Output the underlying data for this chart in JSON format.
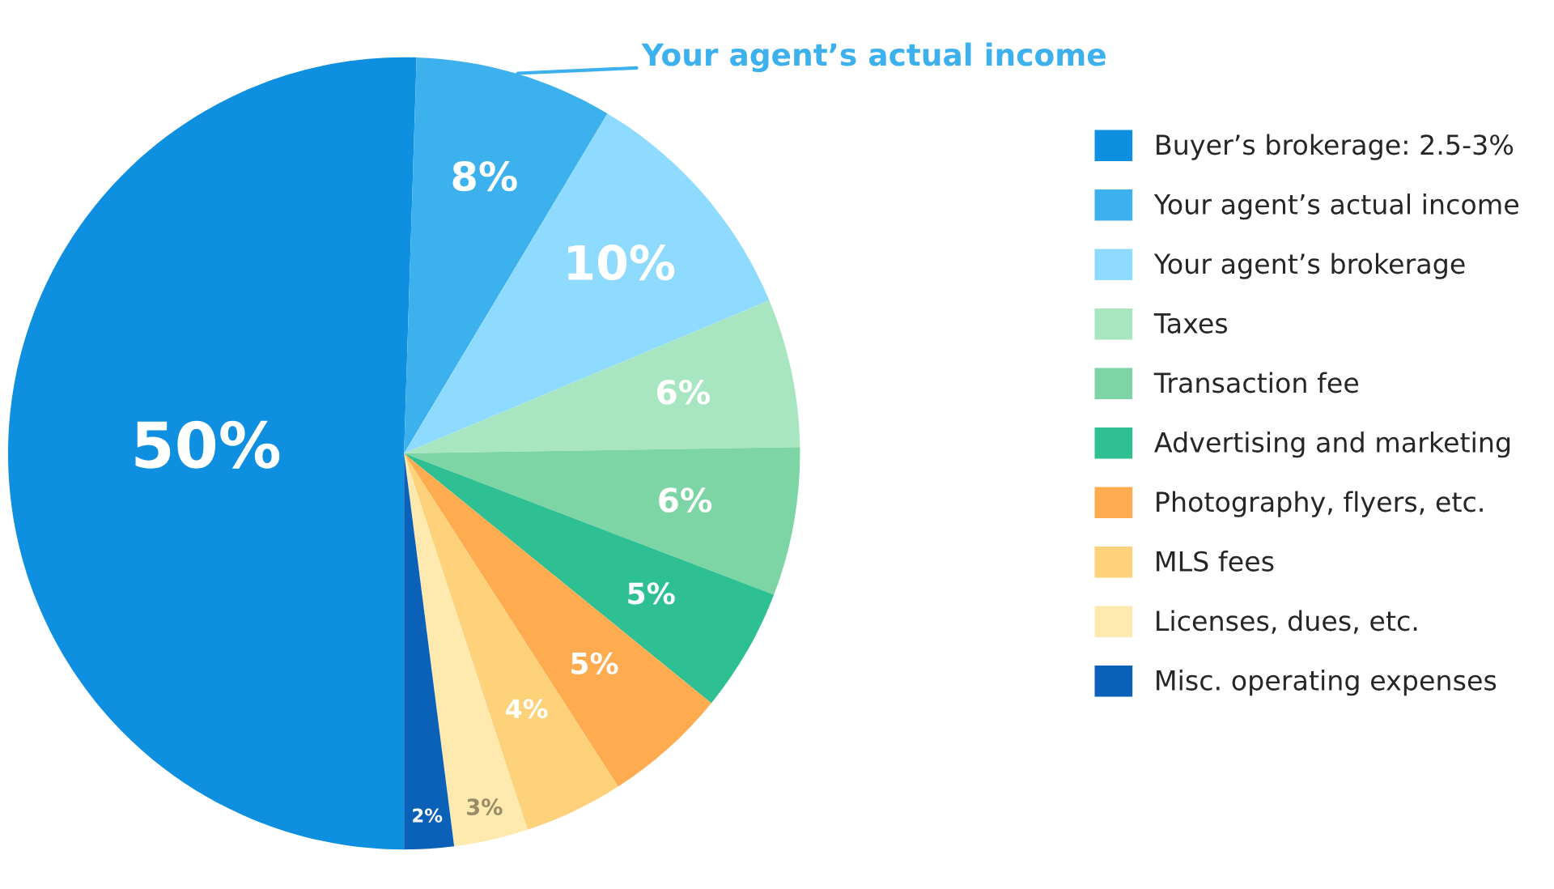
{
  "chart_data": {
    "type": "pie",
    "categories": [
      "Buyer’s brokerage: 2.5-3%",
      "Your agent’s actual income",
      "Your agent’s brokerage",
      "Taxes",
      "Transaction fee",
      "Advertising and marketing",
      "Photography, flyers, etc.",
      "MLS fees",
      "Licenses, dues, etc.",
      "Misc. operating expenses"
    ],
    "values": [
      50,
      8,
      10,
      6,
      6,
      5,
      5,
      4,
      3,
      2
    ],
    "value_labels": [
      "50%",
      "8%",
      "10%",
      "6%",
      "6%",
      "5%",
      "5%",
      "4%",
      "3%",
      "2%"
    ],
    "colors": [
      "#0e8fe0",
      "#3db0ee",
      "#8fdbff",
      "#a8e6c2",
      "#7dd4a5",
      "#2ebf92",
      "#ffab4f",
      "#fdd27a",
      "#feeaaf",
      "#0b60b8"
    ],
    "annotations": [
      "Your agent’s actual income"
    ],
    "legend": "right"
  }
}
